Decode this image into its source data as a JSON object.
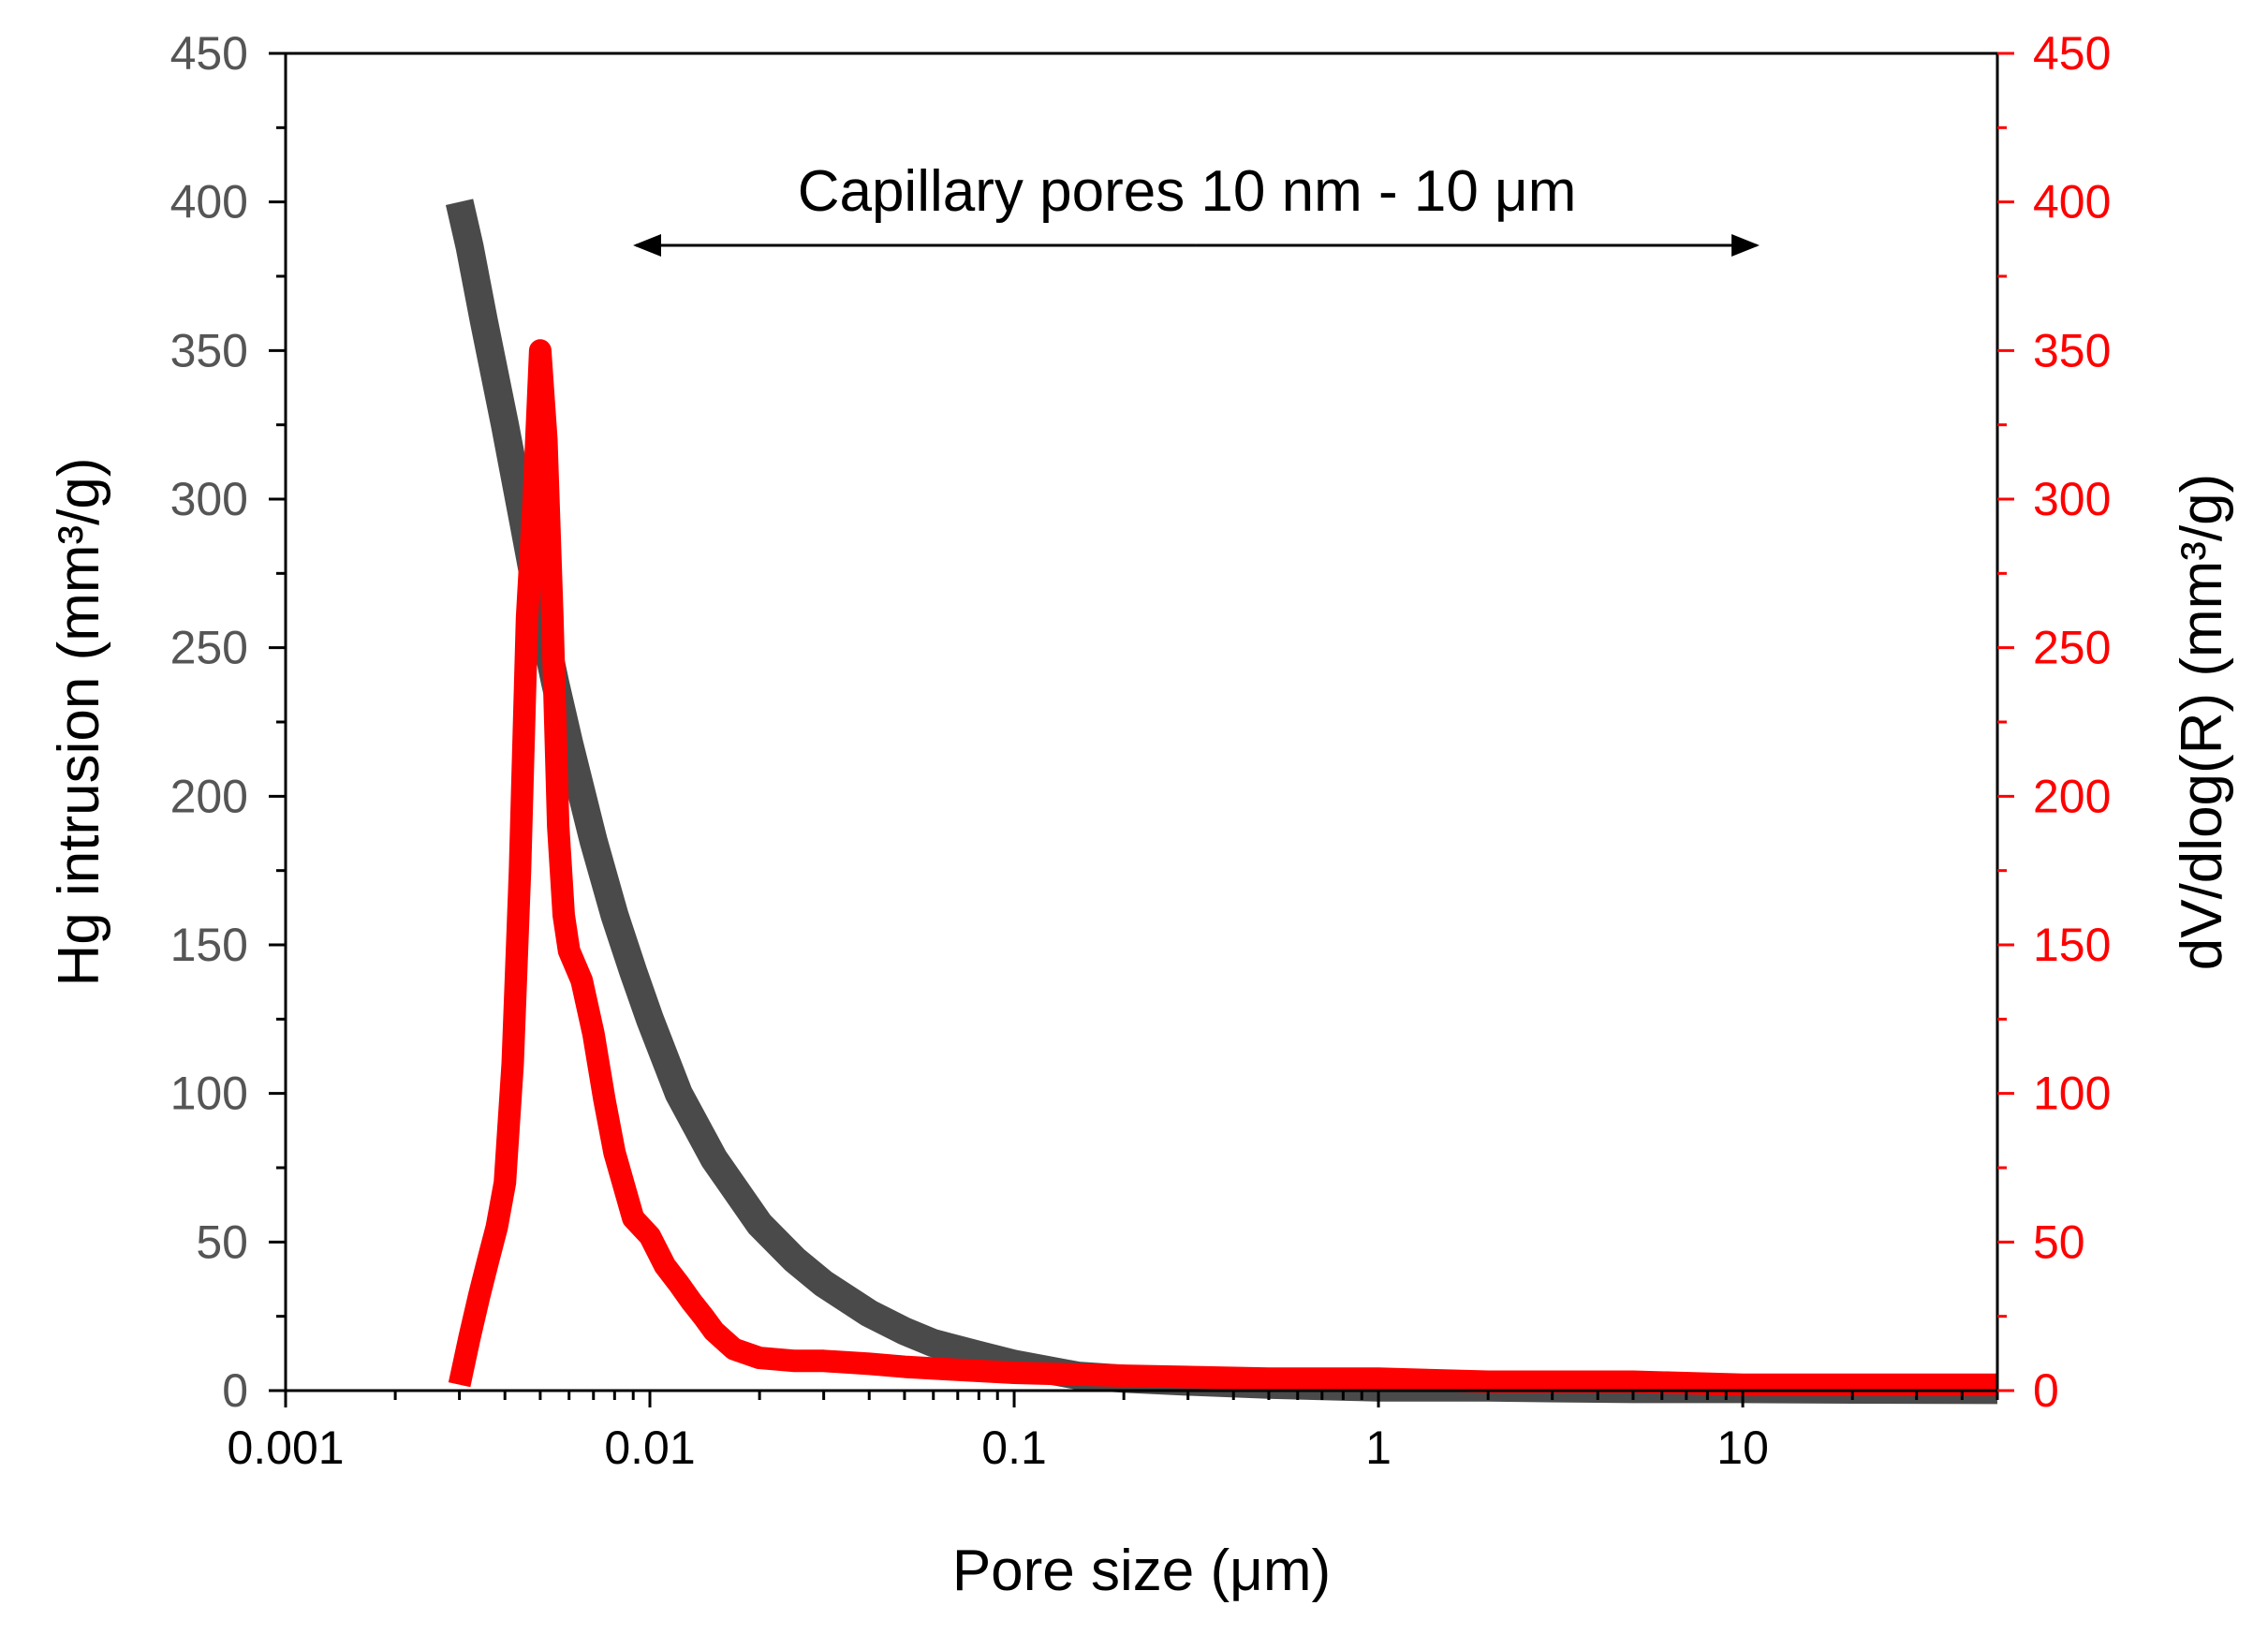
{
  "chart_data": {
    "type": "line",
    "xlabel": "Pore size (μm)",
    "ylabel_left": "Hg intrusion (mm³/g)",
    "ylabel_right": "dV/dlog(R) (mm³/g)",
    "x_scale": "log",
    "xlim": [
      0.001,
      50
    ],
    "ylim_left": [
      0,
      450
    ],
    "ylim_right": [
      0,
      450
    ],
    "x_ticks": [
      {
        "value": 0.001,
        "label": "0.001"
      },
      {
        "value": 0.01,
        "label": "0.01"
      },
      {
        "value": 0.1,
        "label": "0.1"
      },
      {
        "value": 1,
        "label": "1"
      },
      {
        "value": 10,
        "label": "10"
      }
    ],
    "y_ticks_left": [
      "0",
      "50",
      "100",
      "150",
      "200",
      "250",
      "300",
      "350",
      "400",
      "450"
    ],
    "y_ticks_right": [
      "0",
      "50",
      "100",
      "150",
      "200",
      "250",
      "300",
      "350",
      "400",
      "450"
    ],
    "annotation": {
      "text": "Capillary pores 10 nm - 10 μm",
      "arrow_from_x": 0.01,
      "arrow_to_x": 10
    },
    "grid": false,
    "series": [
      {
        "name": "Hg intrusion",
        "axis": "left",
        "color": "#4a4a4a",
        "x": [
          0.003,
          0.0032,
          0.0035,
          0.004,
          0.0045,
          0.005,
          0.0055,
          0.006,
          0.007,
          0.008,
          0.009,
          0.01,
          0.012,
          0.015,
          0.02,
          0.025,
          0.03,
          0.04,
          0.05,
          0.06,
          0.08,
          0.1,
          0.15,
          0.2,
          0.3,
          0.5,
          1,
          2,
          5,
          10,
          20,
          50
        ],
        "y": [
          400,
          385,
          360,
          325,
          292,
          262,
          238,
          218,
          185,
          160,
          141,
          125,
          100,
          78,
          56,
          44,
          36,
          26,
          20,
          16,
          12,
          9,
          5,
          4,
          3,
          2,
          1,
          1,
          0.5,
          0.5,
          0.3,
          0.2
        ]
      },
      {
        "name": "dV/dlog(R)",
        "axis": "right",
        "color": "#ff0000",
        "x": [
          0.003,
          0.0032,
          0.0034,
          0.0036,
          0.0038,
          0.004,
          0.0042,
          0.0044,
          0.0046,
          0.0048,
          0.005,
          0.0052,
          0.0054,
          0.0056,
          0.0058,
          0.006,
          0.0065,
          0.007,
          0.0075,
          0.008,
          0.009,
          0.01,
          0.011,
          0.012,
          0.013,
          0.014,
          0.015,
          0.017,
          0.02,
          0.025,
          0.03,
          0.04,
          0.05,
          0.07,
          0.1,
          0.2,
          0.5,
          1,
          2,
          5,
          10,
          20,
          50
        ],
        "y": [
          2,
          18,
          32,
          44,
          55,
          70,
          110,
          175,
          260,
          300,
          350,
          320,
          260,
          190,
          160,
          148,
          138,
          120,
          98,
          80,
          58,
          52,
          42,
          36,
          30,
          25,
          20,
          14,
          11,
          10,
          10,
          9,
          8,
          7,
          6,
          5,
          4,
          4,
          3,
          3,
          2,
          2,
          2
        ]
      }
    ]
  }
}
